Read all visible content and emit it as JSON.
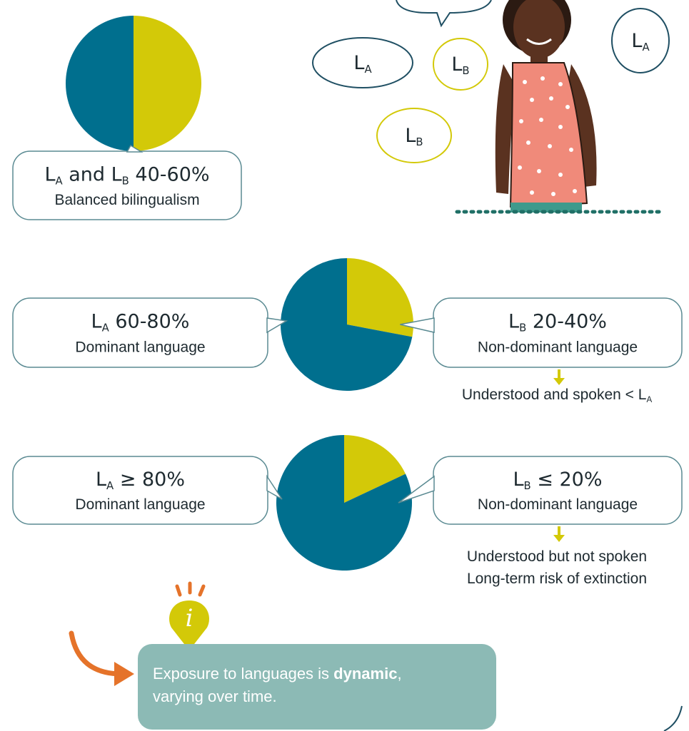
{
  "bubbles": [
    {
      "parts": [
        {
          "text": "L"
        },
        {
          "text": "A",
          "sub": true
        }
      ],
      "color": "#1f4f63"
    },
    {
      "parts": [
        {
          "text": "L"
        },
        {
          "text": "B",
          "sub": true
        }
      ],
      "color": "#d3c908"
    },
    {
      "parts": [
        {
          "text": "L"
        },
        {
          "text": "B",
          "sub": true
        }
      ],
      "color": "#d3c908"
    },
    {
      "parts": [
        {
          "text": "L"
        },
        {
          "text": "A",
          "sub": true
        }
      ],
      "color": "#1f4f63"
    }
  ],
  "sections": [
    {
      "pie": {
        "values": [
          50,
          50
        ],
        "colors": [
          "#d3c908",
          "#006f8e"
        ]
      },
      "boxes": [
        {
          "parts": [
            {
              "text": "L"
            },
            {
              "text": "A",
              "sub": true
            },
            {
              "text": " and L"
            },
            {
              "text": "B",
              "sub": true
            },
            {
              "text": " 40-60%"
            }
          ],
          "caption": "Balanced bilingualism"
        }
      ]
    },
    {
      "pie": {
        "values": [
          28,
          72
        ],
        "colors": [
          "#d3c908",
          "#006f8e"
        ]
      },
      "boxes": [
        {
          "parts": [
            {
              "text": "L"
            },
            {
              "text": "A",
              "sub": true
            },
            {
              "text": " 60-80%"
            }
          ],
          "caption": "Dominant language"
        },
        {
          "parts": [
            {
              "text": "L"
            },
            {
              "text": "B",
              "sub": true
            },
            {
              "text": " 20-40%"
            }
          ],
          "caption": "Non-dominant language"
        }
      ],
      "notes": [
        {
          "parts": [
            {
              "text": "Understood and spoken < L"
            },
            {
              "text": "A",
              "sub": true
            }
          ]
        }
      ]
    },
    {
      "pie": {
        "values": [
          18,
          82
        ],
        "colors": [
          "#d3c908",
          "#006f8e"
        ]
      },
      "boxes": [
        {
          "parts": [
            {
              "text": "L"
            },
            {
              "text": "A",
              "sub": true
            },
            {
              "text": " ≥ 80%"
            }
          ],
          "caption": "Dominant language"
        },
        {
          "parts": [
            {
              "text": "L"
            },
            {
              "text": "B",
              "sub": true
            },
            {
              "text": " ≤ 20%"
            }
          ],
          "caption": "Non-dominant language"
        }
      ],
      "notes": [
        {
          "parts": [
            {
              "text": "Understood but not spoken"
            }
          ]
        },
        {
          "parts": [
            {
              "text": "Long-term risk of extinction"
            }
          ]
        }
      ]
    }
  ],
  "info": {
    "icon": "i",
    "lines": [
      {
        "parts": [
          {
            "text": "Exposure to languages is "
          },
          {
            "text": "dynamic",
            "bold": true
          },
          {
            "text": ","
          }
        ]
      },
      {
        "parts": [
          {
            "text": "varying over time."
          }
        ]
      }
    ]
  }
}
